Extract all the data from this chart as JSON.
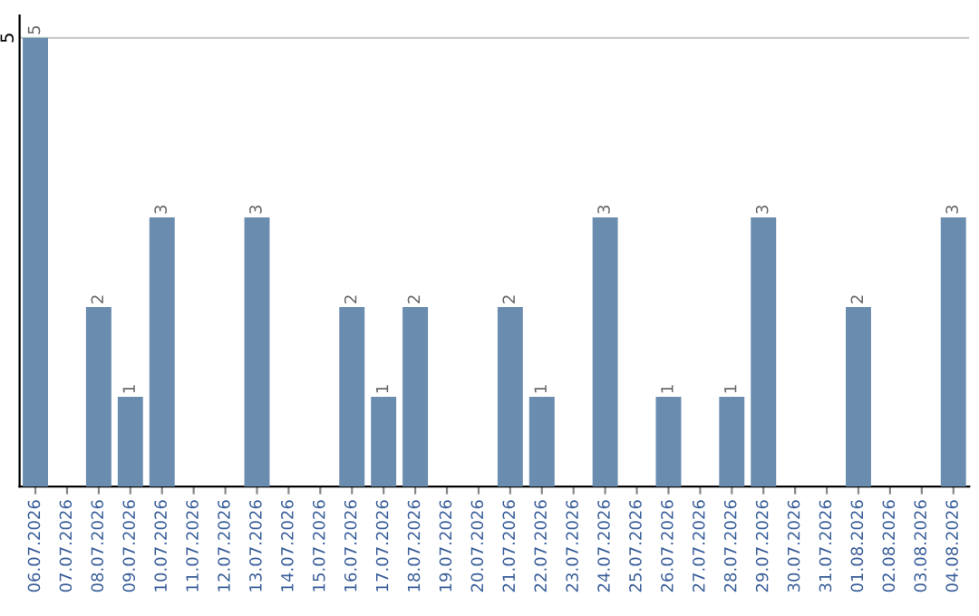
{
  "chart_data": {
    "type": "bar",
    "categories": [
      "06.07.2026",
      "07.07.2026",
      "08.07.2026",
      "09.07.2026",
      "10.07.2026",
      "11.07.2026",
      "12.07.2026",
      "13.07.2026",
      "14.07.2026",
      "15.07.2026",
      "16.07.2026",
      "17.07.2026",
      "18.07.2026",
      "19.07.2026",
      "20.07.2026",
      "21.07.2026",
      "22.07.2026",
      "23.07.2026",
      "24.07.2026",
      "25.07.2026",
      "26.07.2026",
      "27.07.2026",
      "28.07.2026",
      "29.07.2026",
      "30.07.2026",
      "31.07.2026",
      "01.08.2026",
      "02.08.2026",
      "03.08.2026",
      "04.08.2026"
    ],
    "values": [
      5,
      0,
      2,
      1,
      3,
      0,
      0,
      3,
      0,
      0,
      2,
      1,
      2,
      0,
      0,
      2,
      1,
      0,
      3,
      0,
      1,
      0,
      1,
      3,
      0,
      0,
      2,
      0,
      0,
      3
    ],
    "value_labels": [
      "5",
      null,
      "2",
      "1",
      "3",
      null,
      null,
      "3",
      null,
      null,
      "2",
      "1",
      "2",
      null,
      null,
      "2",
      "1",
      null,
      "3",
      null,
      "1",
      null,
      "1",
      "3",
      null,
      null,
      "2",
      null,
      null,
      "3"
    ],
    "color": "#6a8caf",
    "ylim": [
      0,
      5.25
    ],
    "yticks": [
      5
    ],
    "grid": "y"
  }
}
